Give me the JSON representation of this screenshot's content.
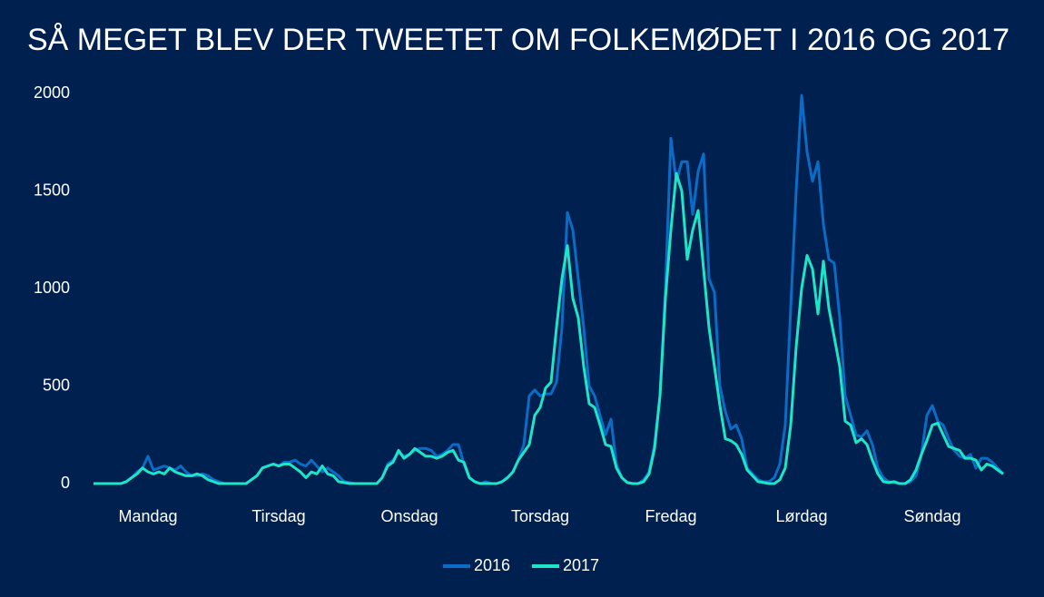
{
  "chart_data": {
    "type": "line",
    "title": "SÅ MEGET BLEV DER TWEETET OM FOLKEMØDET I 2016 OG 2017",
    "categories": [
      null,
      null,
      null,
      null,
      null,
      null,
      null,
      null,
      null,
      null,
      "Mandag",
      null,
      null,
      null,
      null,
      null,
      null,
      null,
      null,
      null,
      null,
      null,
      null,
      null,
      null,
      null,
      null,
      null,
      null,
      null,
      null,
      null,
      null,
      null,
      "Tirsdag",
      null,
      null,
      null,
      null,
      null,
      null,
      null,
      null,
      null,
      null,
      null,
      null,
      null,
      null,
      null,
      null,
      null,
      null,
      null,
      null,
      null,
      null,
      null,
      "Onsdag",
      null,
      null,
      null,
      null,
      null,
      null,
      null,
      null,
      null,
      null,
      null,
      null,
      null,
      null,
      null,
      null,
      null,
      null,
      null,
      null,
      null,
      null,
      null,
      "Torsdag",
      null,
      null,
      null,
      null,
      null,
      null,
      null,
      null,
      null,
      null,
      null,
      null,
      null,
      null,
      null,
      null,
      null,
      null,
      null,
      null,
      null,
      null,
      null,
      "Fredag",
      null,
      null,
      null,
      null,
      null,
      null,
      null,
      null,
      null,
      null,
      null,
      null,
      null,
      null,
      null,
      null,
      null,
      null,
      null,
      null,
      null,
      null,
      null,
      "Lørdag",
      null,
      null,
      null,
      null,
      null,
      null,
      null,
      null,
      null,
      null,
      null,
      null,
      null,
      null,
      null,
      null,
      null,
      null,
      null,
      null,
      null,
      null,
      null,
      "Søndag",
      null,
      null,
      null,
      null,
      null,
      null,
      null,
      null,
      null,
      null,
      null,
      null,
      null
    ],
    "series": [
      {
        "name": "2016",
        "color": "#0a6cc4",
        "values": [
          0,
          0,
          0,
          0,
          0,
          0,
          10,
          30,
          60,
          80,
          140,
          70,
          80,
          90,
          80,
          70,
          90,
          60,
          40,
          40,
          50,
          40,
          20,
          10,
          0,
          0,
          0,
          0,
          0,
          20,
          40,
          80,
          90,
          100,
          90,
          110,
          110,
          120,
          100,
          90,
          120,
          90,
          60,
          80,
          60,
          40,
          10,
          5,
          0,
          0,
          0,
          0,
          0,
          30,
          100,
          120,
          160,
          140,
          150,
          170,
          180,
          180,
          170,
          140,
          150,
          170,
          200,
          200,
          100,
          30,
          10,
          0,
          10,
          0,
          0,
          10,
          30,
          60,
          120,
          200,
          450,
          480,
          450,
          460,
          460,
          520,
          800,
          1390,
          1300,
          1050,
          800,
          500,
          450,
          350,
          250,
          330,
          100,
          30,
          5,
          0,
          0,
          20,
          60,
          200,
          450,
          1000,
          1770,
          1550,
          1650,
          1650,
          1380,
          1600,
          1690,
          1050,
          980,
          500,
          370,
          280,
          300,
          230,
          80,
          50,
          20,
          10,
          10,
          30,
          100,
          300,
          900,
          1500,
          1990,
          1700,
          1550,
          1650,
          1330,
          1150,
          1130,
          850,
          450,
          350,
          250,
          240,
          270,
          200,
          80,
          30,
          10,
          5,
          0,
          0,
          10,
          40,
          150,
          350,
          400,
          320,
          300,
          230,
          170,
          140,
          130,
          150,
          80,
          130,
          130,
          110,
          80,
          50
        ]
      },
      {
        "name": "2017",
        "color": "#1de6c8",
        "values": [
          0,
          0,
          0,
          0,
          0,
          0,
          10,
          30,
          50,
          80,
          60,
          50,
          60,
          50,
          80,
          60,
          50,
          40,
          40,
          50,
          40,
          20,
          10,
          0,
          0,
          0,
          0,
          0,
          0,
          20,
          40,
          80,
          90,
          100,
          90,
          100,
          100,
          80,
          60,
          30,
          60,
          50,
          90,
          50,
          40,
          10,
          5,
          0,
          0,
          0,
          0,
          0,
          0,
          30,
          90,
          110,
          170,
          130,
          150,
          180,
          160,
          140,
          140,
          130,
          140,
          160,
          170,
          120,
          110,
          30,
          10,
          0,
          0,
          0,
          0,
          10,
          30,
          60,
          120,
          160,
          200,
          350,
          390,
          490,
          520,
          800,
          1050,
          1220,
          950,
          850,
          600,
          410,
          390,
          300,
          200,
          190,
          80,
          30,
          5,
          0,
          0,
          10,
          50,
          180,
          450,
          950,
          1300,
          1590,
          1500,
          1150,
          1300,
          1400,
          1100,
          800,
          600,
          400,
          230,
          220,
          200,
          150,
          70,
          40,
          10,
          5,
          0,
          0,
          20,
          80,
          300,
          700,
          1000,
          1170,
          1100,
          870,
          1140,
          900,
          750,
          600,
          320,
          300,
          210,
          230,
          200,
          120,
          50,
          10,
          5,
          10,
          0,
          0,
          20,
          70,
          150,
          220,
          300,
          310,
          250,
          190,
          180,
          170,
          130,
          130,
          120,
          70,
          100,
          90,
          70,
          50
        ]
      }
    ],
    "ylim": [
      0,
      2000
    ],
    "yticks": [
      0,
      500,
      1000,
      1500,
      2000
    ],
    "grid": false,
    "legend": "bottom"
  }
}
